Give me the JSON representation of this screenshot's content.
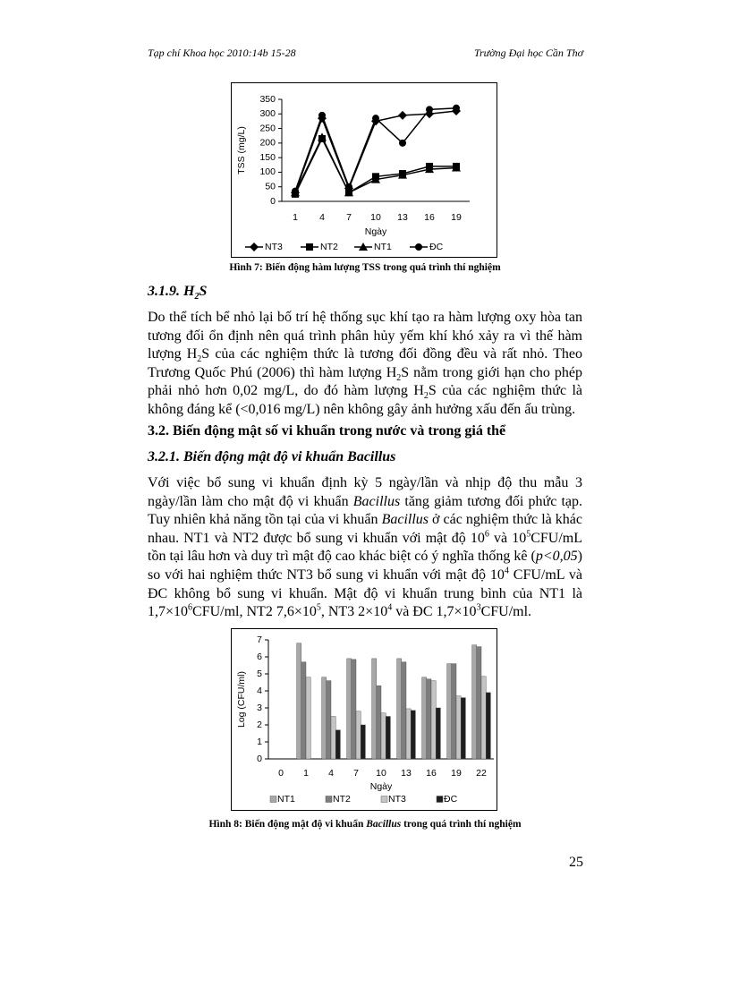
{
  "header": {
    "left": "Tạp chí Khoa học 2010:14b 15-28",
    "right": "Trường Đại học Cần Thơ"
  },
  "chart_data": [
    {
      "type": "line",
      "ylabel": "TSS (mg/L)",
      "xlabel": "Ngày",
      "categories": [
        "1",
        "4",
        "7",
        "10",
        "13",
        "16",
        "19"
      ],
      "ylim": [
        0,
        350
      ],
      "yticks": [
        0,
        50,
        100,
        150,
        200,
        250,
        300,
        350
      ],
      "grid": false,
      "legend": "bottom",
      "series": [
        {
          "name": "NT3",
          "color": "#000000",
          "marker": "diamond",
          "values": [
            30,
            285,
            45,
            275,
            295,
            300,
            310
          ]
        },
        {
          "name": "NT2",
          "color": "#000000",
          "marker": "square",
          "values": [
            25,
            215,
            30,
            85,
            95,
            120,
            120
          ]
        },
        {
          "name": "NT1",
          "color": "#000000",
          "marker": "triangle",
          "values": [
            30,
            220,
            30,
            75,
            90,
            110,
            115
          ]
        },
        {
          "name": "ĐC",
          "color": "#000000",
          "marker": "circle",
          "values": [
            35,
            295,
            50,
            285,
            200,
            315,
            320
          ]
        }
      ],
      "caption": [
        "Hình 7: Biến động hàm lượng TSS trong quá trình thí nghiệm"
      ]
    },
    {
      "type": "bar",
      "ylabel": "Log (CFU/ml)",
      "xlabel": "Ngày",
      "categories": [
        "0",
        "1",
        "4",
        "7",
        "10",
        "13",
        "16",
        "19",
        "22"
      ],
      "ylim": [
        0,
        7
      ],
      "yticks": [
        0,
        1,
        2,
        3,
        4,
        5,
        6,
        7
      ],
      "grid": false,
      "legend": "bottom",
      "series": [
        {
          "name": "NT1",
          "color": "#a8a8a8",
          "values": [
            null,
            6.8,
            4.8,
            5.9,
            5.9,
            5.9,
            4.8,
            5.6,
            6.7
          ]
        },
        {
          "name": "NT2",
          "color": "#7e7e7e",
          "values": [
            null,
            5.7,
            4.6,
            5.85,
            4.3,
            5.7,
            4.7,
            5.6,
            6.6
          ]
        },
        {
          "name": "NT3",
          "color": "#c4c4c4",
          "values": [
            null,
            4.8,
            2.5,
            2.8,
            2.7,
            2.95,
            4.6,
            3.7,
            4.85
          ]
        },
        {
          "name": "ĐC",
          "color": "#1e1e1e",
          "values": [
            null,
            null,
            1.7,
            2.0,
            2.5,
            2.85,
            3.0,
            3.6,
            3.9
          ]
        }
      ],
      "caption": [
        "Hình 8: Biến động mật độ vi khuẩn ",
        "Bacillus",
        " trong quá trình thí nghiệm"
      ]
    }
  ],
  "sections": [
    {
      "heading": [
        "3.1.9. H",
        "2",
        "S"
      ],
      "paragraph": [
        "Do thể tích bể nhỏ lại bố trí hệ thống sục khí tạo ra hàm lượng oxy hòa tan tương đối ổn định nên quá trình phân hủy yếm khí khó xảy ra vì thế hàm lượng H",
        "2",
        "S của các nghiệm thức là tương đối đồng đều và rất nhỏ. Theo Trương Quốc Phú (2006) thì hàm lượng H",
        "2",
        "S nằm trong giới hạn cho phép phải nhỏ hơn 0,02 mg/L, do đó hàm lượng H",
        "2",
        "S của các nghiệm thức là không đáng kể (<0,016 mg/L) nên không gây ảnh hưởng xấu đến ấu trùng."
      ]
    },
    {
      "heading": [
        "3.2. Biến động mật số vi khuẩn trong nước và trong giá thể"
      ]
    },
    {
      "heading": [
        "3.2.1. Biến động mật độ vi khuẩn Bacillus"
      ],
      "paragraph": [
        "Với việc bổ sung vi khuẩn định kỳ 5 ngày/lần và nhịp độ thu mẫu 3 ngày/lần làm cho mật độ vi khuẩn ",
        "Bacillus",
        " tăng giảm tương đối phức tạp. Tuy nhiên khả năng tồn tại của vi khuẩn ",
        "Bacillus",
        " ở các nghiệm thức là khác nhau. NT1 và NT2 được bổ sung vi khuẩn với mật độ 10",
        "6",
        " và 10",
        "5",
        "CFU/mL tồn tại lâu hơn và duy trì mật độ cao khác biệt có ý nghĩa thống kê (",
        "p<0,05",
        ") so với hai nghiệm thức NT3 bổ sung vi khuẩn với mật độ 10",
        "4",
        " CFU/mL và ĐC không bổ sung vi khuẩn. Mật độ vi khuẩn trung bình của NT1 là 1,7×10",
        "6",
        "CFU/ml, NT2 7,6×10",
        "5",
        ", NT3 2×10",
        "4",
        " và ĐC 1,7×10",
        "3",
        "CFU/ml."
      ]
    }
  ],
  "page_number": "25"
}
